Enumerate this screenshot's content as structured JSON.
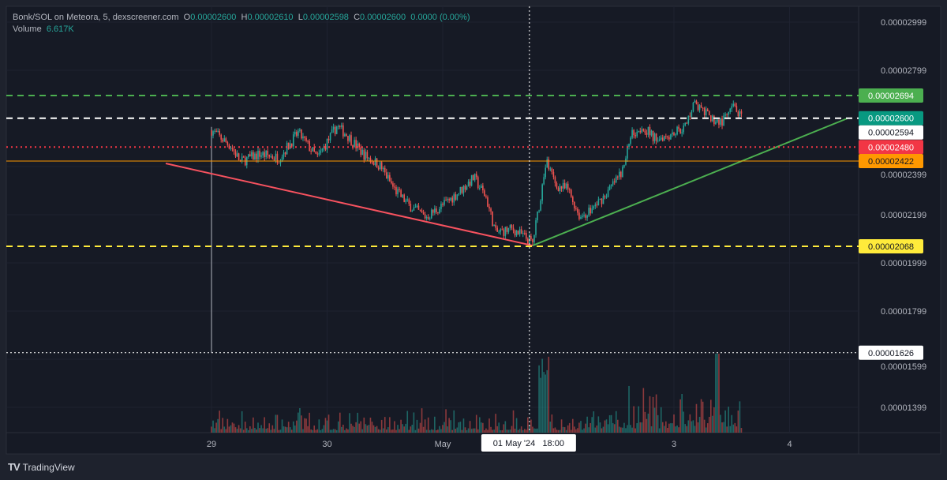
{
  "legend": {
    "symbol": "Bonk/SOL on Meteora, 5, dexscreener.com",
    "o_label": "O",
    "o": "0.00002600",
    "h_label": "H",
    "h": "0.00002610",
    "l_label": "L",
    "l": "0.00002598",
    "c_label": "C",
    "c": "0.00002600",
    "change": "0.0000 (0.00%)",
    "volume_label": "Volume",
    "volume": "6.617K"
  },
  "branding": {
    "logo_text": "TradingView"
  },
  "colors": {
    "up": "#26a69a",
    "down": "#ef5350",
    "background": "#161a25"
  },
  "chart_data": {
    "type": "candlestick",
    "interval": "5",
    "y_ticks": [
      "0.00002999",
      "0.00002799",
      "0.00002399",
      "0.00002199",
      "0.00001999",
      "0.00001799",
      "0.00001599",
      "0.00001399"
    ],
    "x_ticks": [
      {
        "label": "29",
        "t": "2024-04-29T00:00"
      },
      {
        "label": "30",
        "t": "2024-04-30T00:00"
      },
      {
        "label": "May",
        "t": "2024-05-01T00:00"
      },
      {
        "label": "3",
        "t": "2024-05-03T00:00"
      },
      {
        "label": "4",
        "t": "2024-05-04T00:00"
      }
    ],
    "price_path": [
      [
        "2024-04-29T00:00",
        2.55e-05
      ],
      [
        "2024-04-29T04:00",
        2.484e-05
      ],
      [
        "2024-04-29T06:00",
        2.419e-05
      ],
      [
        "2024-04-29T10:00",
        2.451e-05
      ],
      [
        "2024-04-29T14:00",
        2.435e-05
      ],
      [
        "2024-04-29T18:00",
        2.54e-05
      ],
      [
        "2024-04-29T22:00",
        2.435e-05
      ],
      [
        "2024-04-30T02:00",
        2.566e-05
      ],
      [
        "2024-04-30T04:00",
        2.533e-05
      ],
      [
        "2024-04-30T07:30",
        2.451e-05
      ],
      [
        "2024-04-30T11:00",
        2.402e-05
      ],
      [
        "2024-04-30T14:00",
        2.304e-05
      ],
      [
        "2024-04-30T17:00",
        2.238e-05
      ],
      [
        "2024-04-30T20:30",
        2.189e-05
      ],
      [
        "2024-04-30T24:00",
        2.238e-05
      ],
      [
        "2024-05-01T03:00",
        2.287e-05
      ],
      [
        "2024-05-01T06:30",
        2.353e-05
      ],
      [
        "2024-05-01T09:00",
        2.271e-05
      ],
      [
        "2024-05-01T11:00",
        2.124e-05
      ],
      [
        "2024-05-01T14:30",
        2.14e-05
      ],
      [
        "2024-05-01T17:00",
        2.107e-05
      ],
      [
        "2024-05-01T18:40",
        2.081e-05
      ],
      [
        "2024-05-01T20:00",
        2.238e-05
      ],
      [
        "2024-05-01T21:30",
        2.42e-05
      ],
      [
        "2024-05-01T23:30",
        2.32e-05
      ],
      [
        "2024-05-02T02:00",
        2.304e-05
      ],
      [
        "2024-05-02T04:30",
        2.189e-05
      ],
      [
        "2024-05-02T07:00",
        2.222e-05
      ],
      [
        "2024-05-02T10:00",
        2.287e-05
      ],
      [
        "2024-05-02T13:30",
        2.386e-05
      ],
      [
        "2024-05-02T15:00",
        2.533e-05
      ],
      [
        "2024-05-02T17:30",
        2.566e-05
      ],
      [
        "2024-05-02T20:00",
        2.517e-05
      ],
      [
        "2024-05-02T23:00",
        2.533e-05
      ],
      [
        "2024-05-03T02:30",
        2.566e-05
      ],
      [
        "2024-05-03T04:00",
        2.665e-05
      ],
      [
        "2024-05-03T07:30",
        2.599e-05
      ],
      [
        "2024-05-03T10:00",
        2.583e-05
      ],
      [
        "2024-05-03T12:30",
        2.648e-05
      ],
      [
        "2024-05-03T14:00",
        2.6e-05
      ]
    ],
    "first_candle_low": 1.626e-05,
    "horizontal_lines": [
      {
        "price": 2.694e-05,
        "label": "0.00002694",
        "color": "#4caf50",
        "style": "dashed",
        "label_text_color": "#ffffff"
      },
      {
        "price": 2.6e-05,
        "label": "0.00002600",
        "color": "#ffffff",
        "style": "dashed",
        "label_bg": "#089981",
        "label_text_color": "#ffffff"
      },
      {
        "price": 2.594e-05,
        "label": "0.00002594",
        "color": null,
        "style": "none",
        "label_bg": "#ffffff",
        "label_text_color": "#131722"
      },
      {
        "price": 2.48e-05,
        "label": "0.00002480",
        "color": "#f23645",
        "style": "dotted",
        "label_text_color": "#ffffff"
      },
      {
        "price": 2.422e-05,
        "label": "0.00002422",
        "color": "#ff9800",
        "style": "solid",
        "label_text_color": "#131722"
      },
      {
        "price": 2.068e-05,
        "label": "0.00002068",
        "color": "#ffeb3b",
        "style": "dashed",
        "label_text_color": "#131722"
      }
    ],
    "trend_lines": [
      {
        "color": "#f7525f",
        "from": [
          "2024-04-28T14:30",
          2.412e-05
        ],
        "to": [
          "2024-05-01T18:40",
          2.071e-05
        ]
      },
      {
        "color": "#4caf50",
        "from": [
          "2024-05-01T18:40",
          2.071e-05
        ],
        "to": [
          "2024-05-04T12:00",
          2.599e-05
        ]
      }
    ],
    "crosshair": {
      "time_label": "01 May '24   18:00",
      "t": "2024-05-01T18:00",
      "price": 1.626e-05,
      "price_label": "0.00001626"
    }
  }
}
